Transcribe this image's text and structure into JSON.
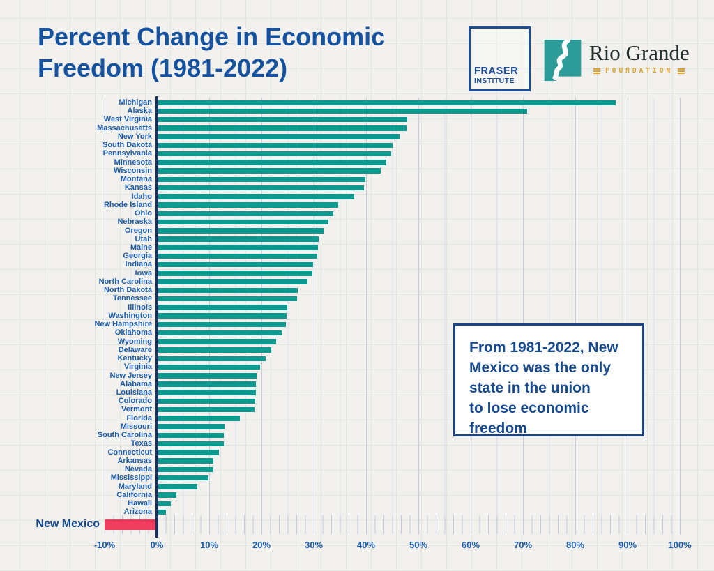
{
  "title": "Percent Change in Economic\nFreedom (1981-2022)",
  "logos": {
    "fraser_line1": "FRASER",
    "fraser_line2": "INSTITUTE",
    "rio_name": "Rio Grande",
    "rio_sub": "FOUNDATION"
  },
  "annotation": "From 1981-2022, New\nMexico was the only\nstate in the union\nto lose economic\nfreedom",
  "colors": {
    "bar_teal": "#0d9990",
    "bar_red": "#ef3d5d",
    "title_blue": "#1553a0",
    "label_blue": "#1a5cab",
    "zero_axis_navy": "#17325e",
    "annotation_blue": "#1b4488",
    "logo_teal": "#2d9c99",
    "logo_gold": "#dda32e"
  },
  "chart_data": {
    "type": "bar",
    "orientation": "horizontal",
    "title": "Percent Change in Economic Freedom (1981-2022)",
    "xlabel": "",
    "ylabel": "",
    "unit": "%",
    "xlim": [
      -10,
      100
    ],
    "x_ticks": [
      "-10%",
      "0%",
      "10%",
      "20%",
      "30%",
      "40%",
      "50%",
      "60%",
      "70%",
      "80%",
      "90%",
      "100%"
    ],
    "grid": true,
    "highlight_category": "New Mexico",
    "categories": [
      "Michigan",
      "Alaska",
      "West Virginia",
      "Massachusetts",
      "New York",
      "South Dakota",
      "Pennsylvania",
      "Minnesota",
      "Wisconsin",
      "Montana",
      "Kansas",
      "Idaho",
      "Rhode Island",
      "Ohio",
      "Nebraska",
      "Oregon",
      "Utah",
      "Maine",
      "Georgia",
      "Indiana",
      "Iowa",
      "North Carolina",
      "North Dakota",
      "Tennessee",
      "Illinois",
      "Washington",
      "New Hampshire",
      "Oklahoma",
      "Wyoming",
      "Delaware",
      "Kentucky",
      "Virginia",
      "New Jersey",
      "Alabama",
      "Louisiana",
      "Colorado",
      "Vermont",
      "Florida",
      "Missouri",
      "South Carolina",
      "Texas",
      "Connecticut",
      "Arkansas",
      "Nevada",
      "Mississippi",
      "Maryland",
      "California",
      "Hawaii",
      "Arizona",
      "New Mexico"
    ],
    "values": [
      87.7,
      70.8,
      47.9,
      47.7,
      46.4,
      45.0,
      44.8,
      43.9,
      42.8,
      39.9,
      39.6,
      37.7,
      34.7,
      33.7,
      32.8,
      31.8,
      30.9,
      30.8,
      30.7,
      29.8,
      29.7,
      28.8,
      26.9,
      26.8,
      24.9,
      24.8,
      24.7,
      23.8,
      22.8,
      21.8,
      20.8,
      19.7,
      19.0,
      18.9,
      18.9,
      18.8,
      18.7,
      15.9,
      12.9,
      12.8,
      12.8,
      11.9,
      10.8,
      10.8,
      9.9,
      7.7,
      3.7,
      2.7,
      1.7,
      -10.0
    ]
  }
}
